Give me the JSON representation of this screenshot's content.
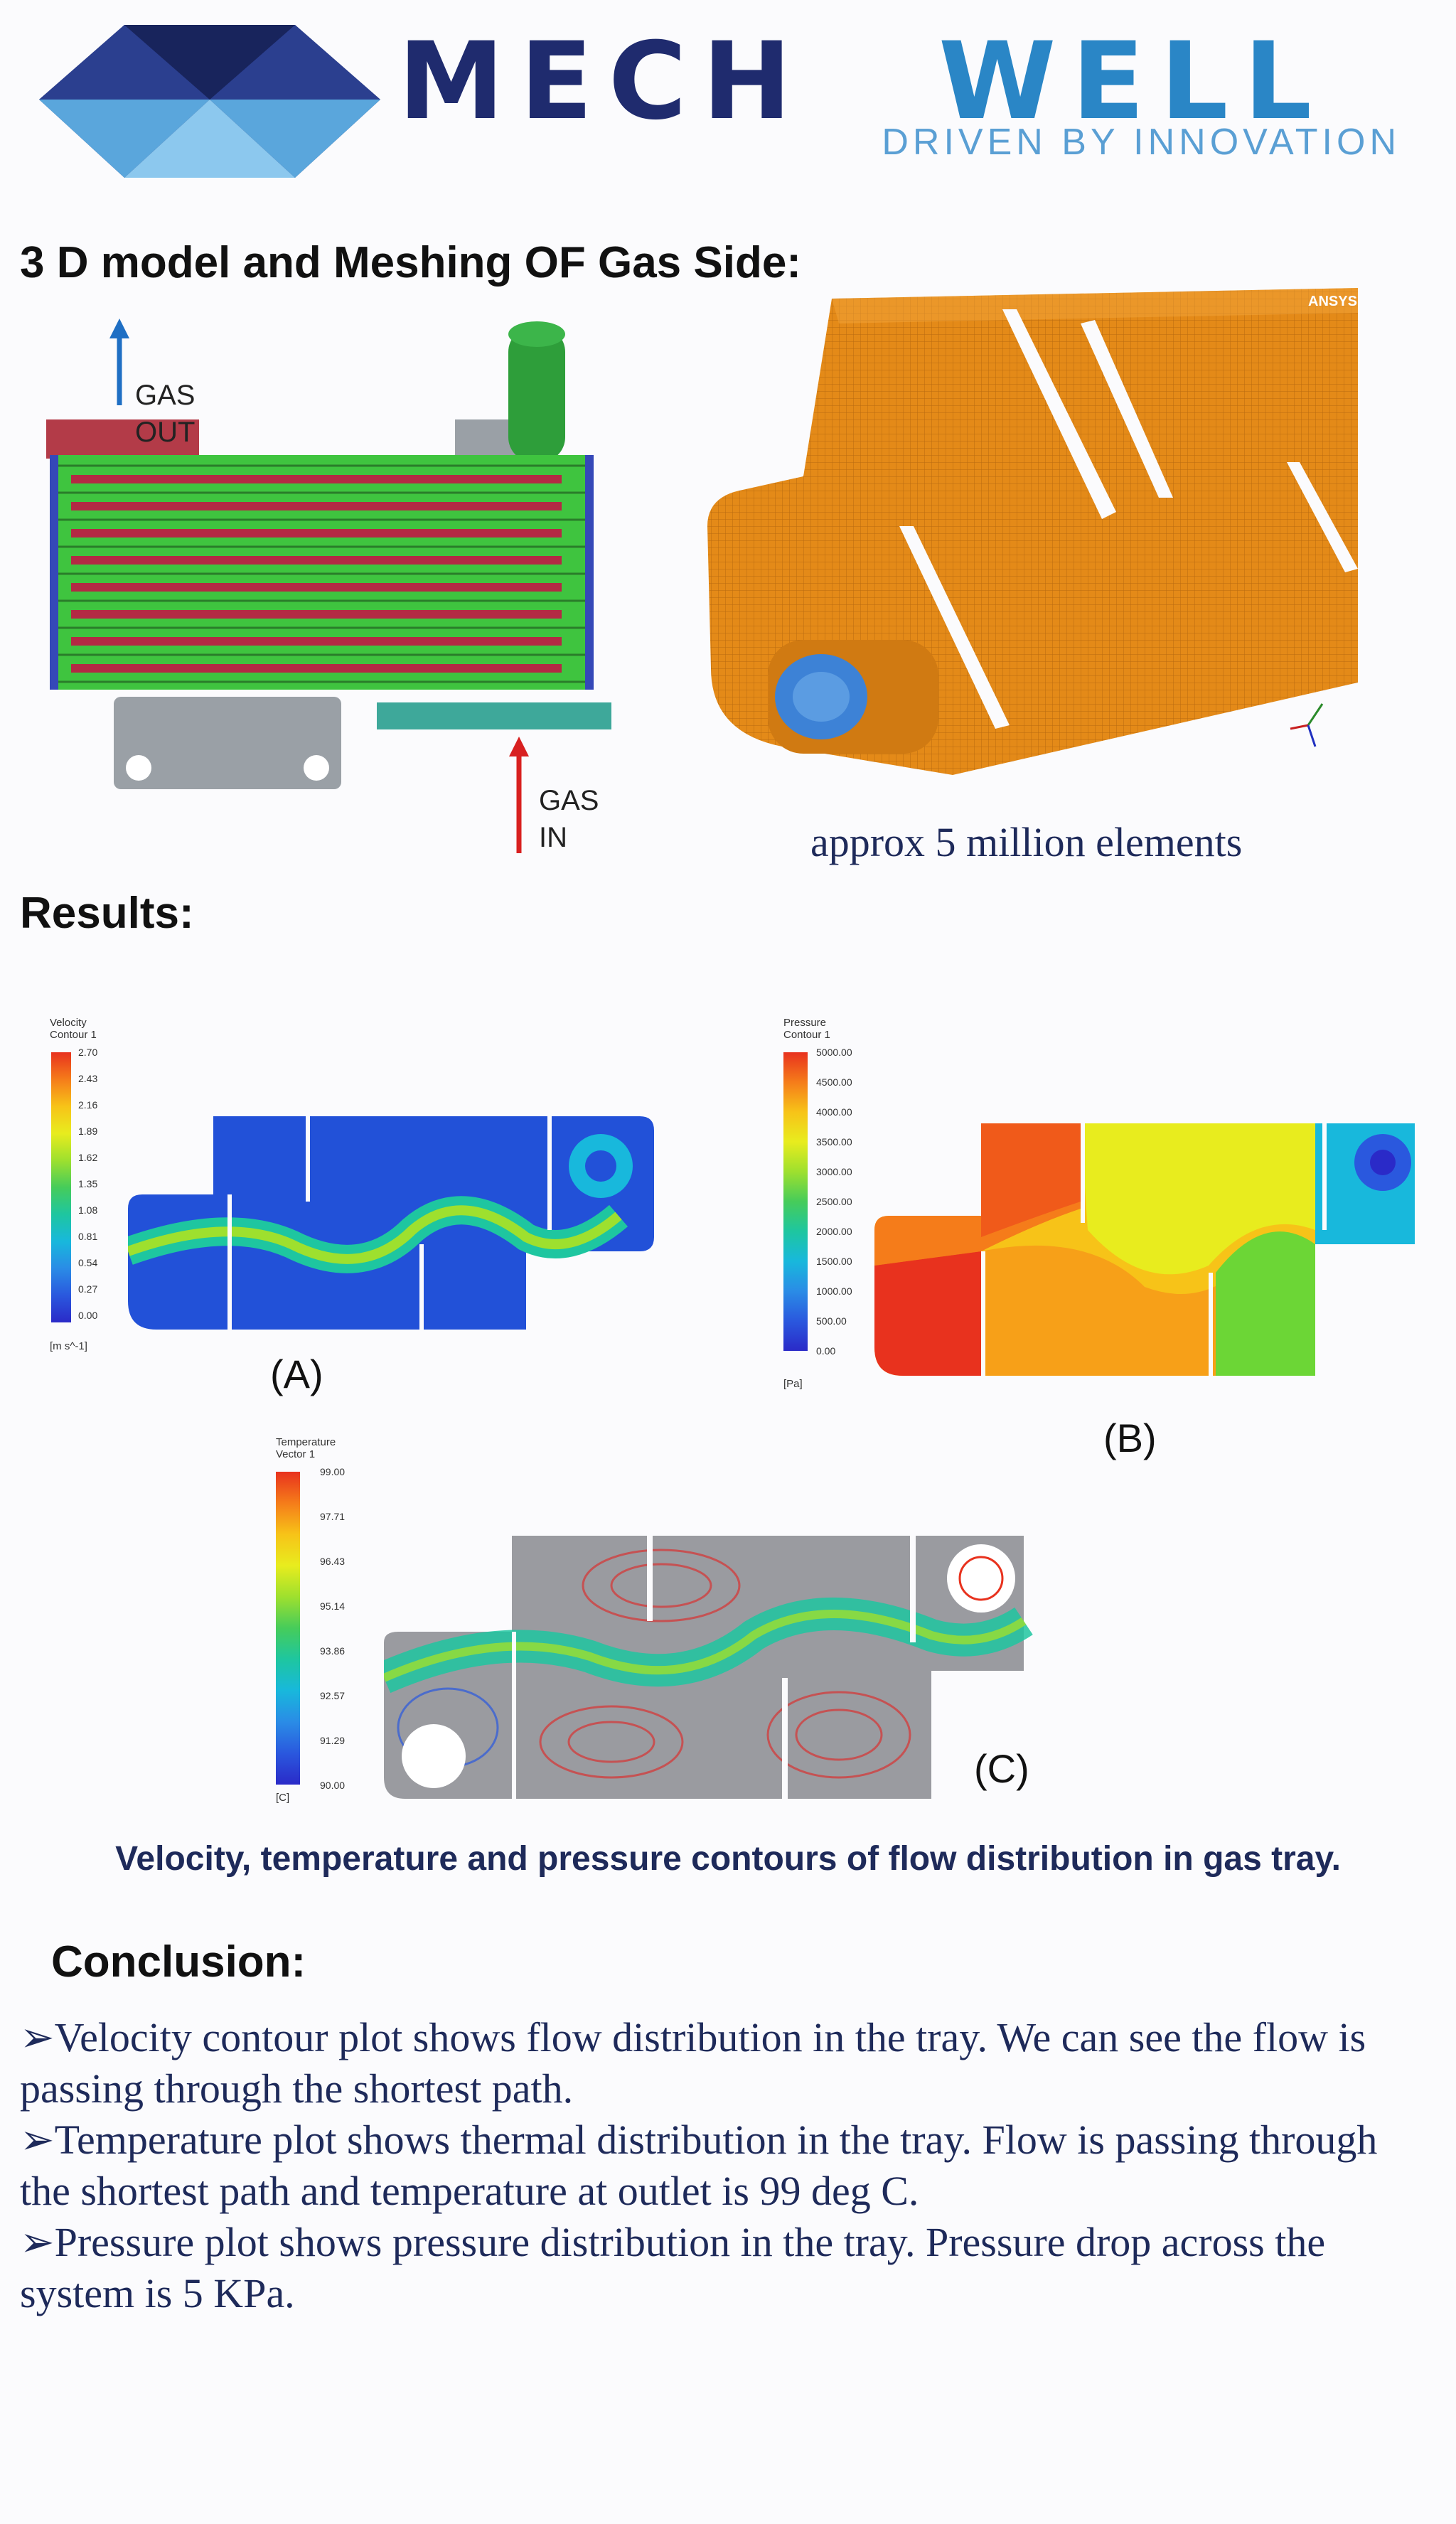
{
  "header": {
    "brand_left": "MECH",
    "brand_right": "WELL",
    "tagline": "DRIVEN BY INNOVATION"
  },
  "section_model": {
    "title": "3 D model and Meshing OF Gas Side:",
    "gas_out_label": "GAS\nOUT",
    "gas_in_label": "GAS\nIN",
    "mesh_watermark": "ANSYS",
    "mesh_caption": "approx 5 million elements"
  },
  "section_results": {
    "title": "Results:",
    "velocity": {
      "legend_title": "Velocity\nContour 1",
      "unit": "[m s^-1]",
      "values": [
        "2.70",
        "2.43",
        "2.16",
        "1.89",
        "1.62",
        "1.35",
        "1.08",
        "0.81",
        "0.54",
        "0.27",
        "0.00"
      ],
      "label": "(A)"
    },
    "pressure": {
      "legend_title": "Pressure\nContour 1",
      "unit": "[Pa]",
      "values": [
        "5000.00",
        "4500.00",
        "4000.00",
        "3500.00",
        "3000.00",
        "2500.00",
        "2000.00",
        "1500.00",
        "1000.00",
        "500.00",
        "0.00"
      ],
      "label": "(B)"
    },
    "temperature": {
      "legend_title": "Temperature\nVector 1",
      "unit": "[C]",
      "values": [
        "99.00",
        "97.71",
        "96.43",
        "95.14",
        "93.86",
        "92.57",
        "91.29",
        "90.00"
      ],
      "label": "(C)"
    },
    "caption": "Velocity, temperature and pressure  contours of flow distribution in gas tray."
  },
  "section_conclusion": {
    "title": "Conclusion:",
    "bullets": [
      "Velocity contour plot shows flow distribution in the tray. We  can see the flow is passing  through the shortest path.",
      "Temperature plot shows thermal distribution in the tray. Flow is passing through the shortest path and temperature at outlet is 99 deg C.",
      "Pressure plot shows pressure distribution in the tray. Pressure drop across the system is 5 KPa."
    ]
  },
  "colors": {
    "brand_dark": "#1f2b6e",
    "brand_light": "#2a86c6",
    "caption_navy": "#1e2a5a"
  }
}
